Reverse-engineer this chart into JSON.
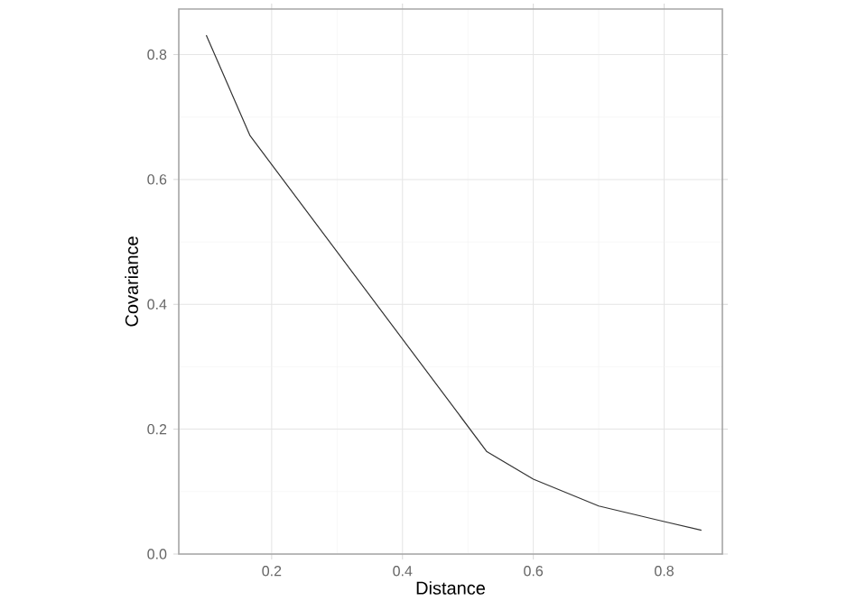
{
  "chart_data": {
    "type": "line",
    "xlabel": "Distance",
    "ylabel": "Covariance",
    "x": [
      0.1,
      0.167,
      0.529,
      0.6,
      0.7,
      0.8,
      0.857
    ],
    "series": [
      {
        "color": "#333333",
        "values": [
          0.831,
          0.67,
          0.164,
          0.12,
          0.077,
          0.052,
          0.038
        ]
      }
    ],
    "xlim": [
      0.058,
      0.889
    ],
    "ylim": [
      0,
      0.873
    ],
    "xticks": [
      0.2,
      0.4,
      0.6,
      0.8
    ],
    "yticks": [
      {
        "value": 0,
        "label": "0.0"
      },
      0.2,
      0.4,
      0.6,
      0.8
    ],
    "grid": true,
    "marker": "none",
    "line_style": "solid"
  }
}
